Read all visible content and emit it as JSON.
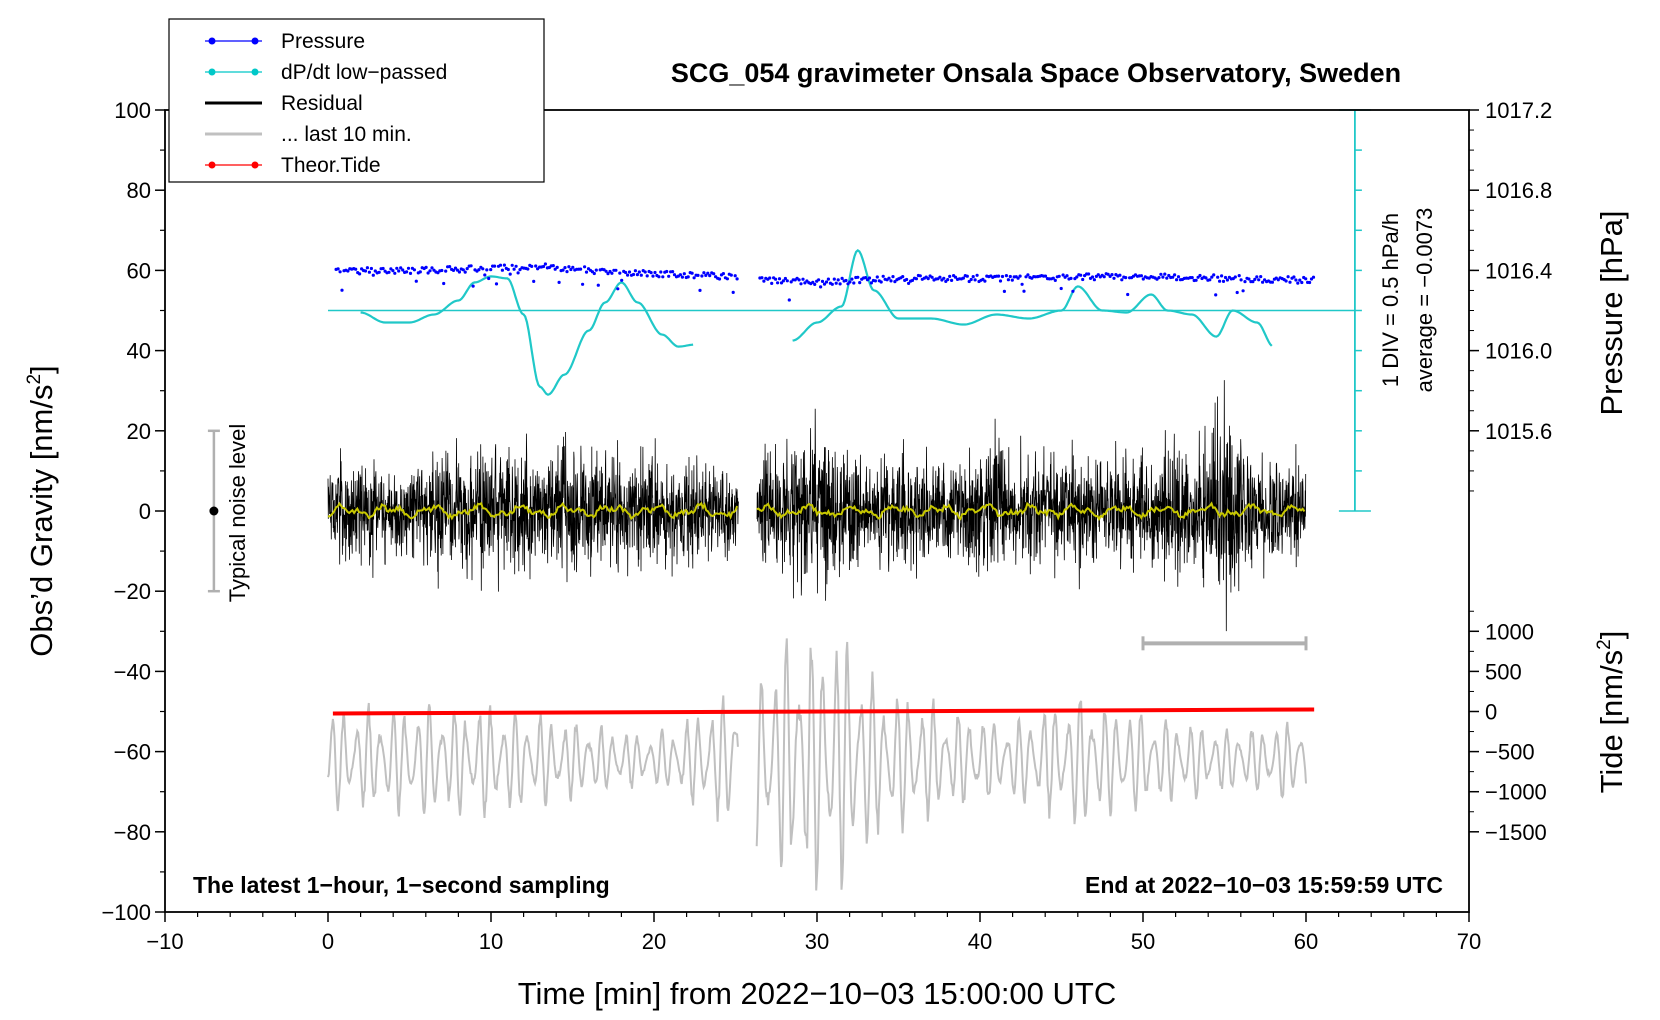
{
  "chart_data": {
    "type": "line",
    "title": "SCG_054 gravimeter Onsala Space Observatory, Sweden",
    "xlabel": "Time [min] from 2022−10−03 15:00:00 UTC",
    "ylabel_left": "Obs’d Gravity [nm/s",
    "ylabel_left_sup": "2",
    "ylabel_left_close": "]",
    "ylabel_right_pressure": "Pressure [hPa]",
    "ylabel_right_tide": "Tide [nm/s",
    "ylabel_right_tide_sup": "2",
    "ylabel_right_tide_close": "]",
    "xlim": [
      -10,
      70
    ],
    "ylim": [
      -100,
      100
    ],
    "x_ticks": [
      "−10",
      "0",
      "10",
      "20",
      "30",
      "40",
      "50",
      "60",
      "70"
    ],
    "x_tick_values": [
      -10,
      0,
      10,
      20,
      30,
      40,
      50,
      60,
      70
    ],
    "y_ticks": [
      "100",
      "80",
      "60",
      "40",
      "20",
      "0",
      "−20",
      "−40",
      "−60",
      "−80",
      "−100"
    ],
    "y_tick_values": [
      100,
      80,
      60,
      40,
      20,
      0,
      -20,
      -40,
      -60,
      -80,
      -100
    ],
    "pressure_axis": {
      "ticks": [
        "1017.2",
        "1016.8",
        "1016.4",
        "1016.0",
        "1015.6"
      ],
      "tick_values": [
        1017.2,
        1016.8,
        1016.4,
        1016.0,
        1015.6
      ],
      "hpa_per_gravity_unit": 0.02,
      "baseline_hpa": 1015.2
    },
    "tide_axis": {
      "ticks": [
        "1000",
        "500",
        "0",
        "−500",
        "−1000",
        "−1500"
      ],
      "tick_values": [
        1000,
        500,
        0,
        -500,
        -1000,
        -1500
      ],
      "gravity_per_tide_unit": 0.02,
      "gravity_offset": -50
    },
    "pressure_series": {
      "segments": [
        [
          0.5,
          25.2
        ],
        [
          26.5,
          60.5
        ]
      ],
      "knots_x": [
        0.5,
        5,
        10,
        13,
        18,
        25,
        26.5,
        30,
        35,
        40,
        50,
        60.5
      ],
      "knots_y": [
        59.8,
        60.0,
        60.5,
        61.0,
        59.5,
        58.5,
        58.0,
        57.0,
        58.0,
        58.0,
        58.5,
        57.5
      ]
    },
    "dpdt_series": {
      "baseline": 50,
      "segments": [
        {
          "x": [
            2,
            3.5,
            5,
            6.5,
            8,
            9,
            10,
            11,
            12,
            13,
            13.5,
            14.5,
            16,
            17,
            18,
            19,
            20.5,
            21.5,
            22.5
          ],
          "y": [
            49.5,
            47,
            47,
            49,
            52.5,
            57,
            58.5,
            58,
            49,
            31,
            29,
            34,
            45,
            52,
            57,
            52,
            44,
            41,
            41.5
          ]
        },
        {
          "x": [
            28.5,
            30,
            31.5,
            32.5,
            33.5,
            35,
            37,
            39,
            41,
            43,
            45,
            46,
            47.5,
            49,
            50.5,
            51.5,
            53,
            54.5,
            55.5,
            57,
            58
          ],
          "y": [
            42.5,
            47,
            51,
            65,
            55,
            48,
            48,
            46.5,
            49,
            48,
            50,
            56,
            50,
            49.5,
            54,
            50,
            49,
            43.5,
            50,
            47,
            41
          ]
        }
      ]
    },
    "residual_series": {
      "segments": [
        [
          0,
          25.2
        ],
        [
          26.3,
          60
        ]
      ],
      "envelope_x": [
        0,
        5,
        8.5,
        10.5,
        13,
        15,
        18,
        20,
        22,
        25,
        26.3,
        28,
        29.5,
        31,
        33,
        36,
        38,
        41,
        43,
        46,
        50,
        53,
        55,
        57,
        60
      ],
      "envelope_y": [
        14,
        16,
        20,
        22,
        17,
        22,
        15,
        18,
        16,
        14,
        16,
        20,
        28,
        24,
        17,
        18,
        15,
        22,
        16,
        17,
        17,
        20,
        34,
        18,
        14
      ],
      "smoothed_amplitude": 1.5
    },
    "last10_series": {
      "segments": [
        [
          0,
          25.2
        ],
        [
          26.3,
          60
        ]
      ],
      "center": -62,
      "envelope_x": [
        0,
        5,
        10,
        15,
        20,
        25,
        26.3,
        28.5,
        30,
        31.5,
        34,
        38,
        42,
        46,
        50,
        55,
        60
      ],
      "envelope_y": [
        12,
        14,
        14,
        10,
        6,
        18,
        22,
        32,
        34,
        32,
        20,
        13,
        10,
        17,
        12,
        8,
        10
      ]
    },
    "theor_tide_series": {
      "x": [
        0.3,
        60.5
      ],
      "y": [
        -50.5,
        -49.5
      ]
    },
    "noise_bar": {
      "x": -7,
      "center": 0,
      "low": -20,
      "high": 20,
      "label": "Typical noise level"
    },
    "time_bar": {
      "x_start": 50,
      "x_end": 60,
      "y": -33
    },
    "dp_scale": {
      "x": 63,
      "y_top": 100,
      "y_bottom": 0,
      "baseline": 50,
      "minor_step": 10,
      "label_div": "1 DIV = 0.5 hPa/h",
      "label_avg": "average = −0.0073"
    },
    "legend": [
      {
        "label": "Pressure",
        "color": "#0000ff",
        "marker": true,
        "thin": true
      },
      {
        "label": "dP/dt low−passed",
        "color": "#00c8c8",
        "marker": true,
        "thin": true
      },
      {
        "label": "Residual",
        "color": "#000000",
        "marker": false,
        "thin": false
      },
      {
        "label": "... last 10 min.",
        "color": "#c0c0c0",
        "marker": false,
        "thin": false
      },
      {
        "label": "Theor.Tide",
        "color": "#ff0000",
        "marker": true,
        "thin": true
      }
    ],
    "annotation_left": "The latest 1−hour, 1−second sampling",
    "annotation_right": "End at 2022−10−03 15:59:59 UTC",
    "colors": {
      "pressure": "#0000ff",
      "dpdt": "#20c8c8",
      "residual": "#000000",
      "smoothed": "#c8c800",
      "last10": "#c0c0c0",
      "tide": "#ff0000",
      "noise": "#b0b0b0"
    }
  }
}
